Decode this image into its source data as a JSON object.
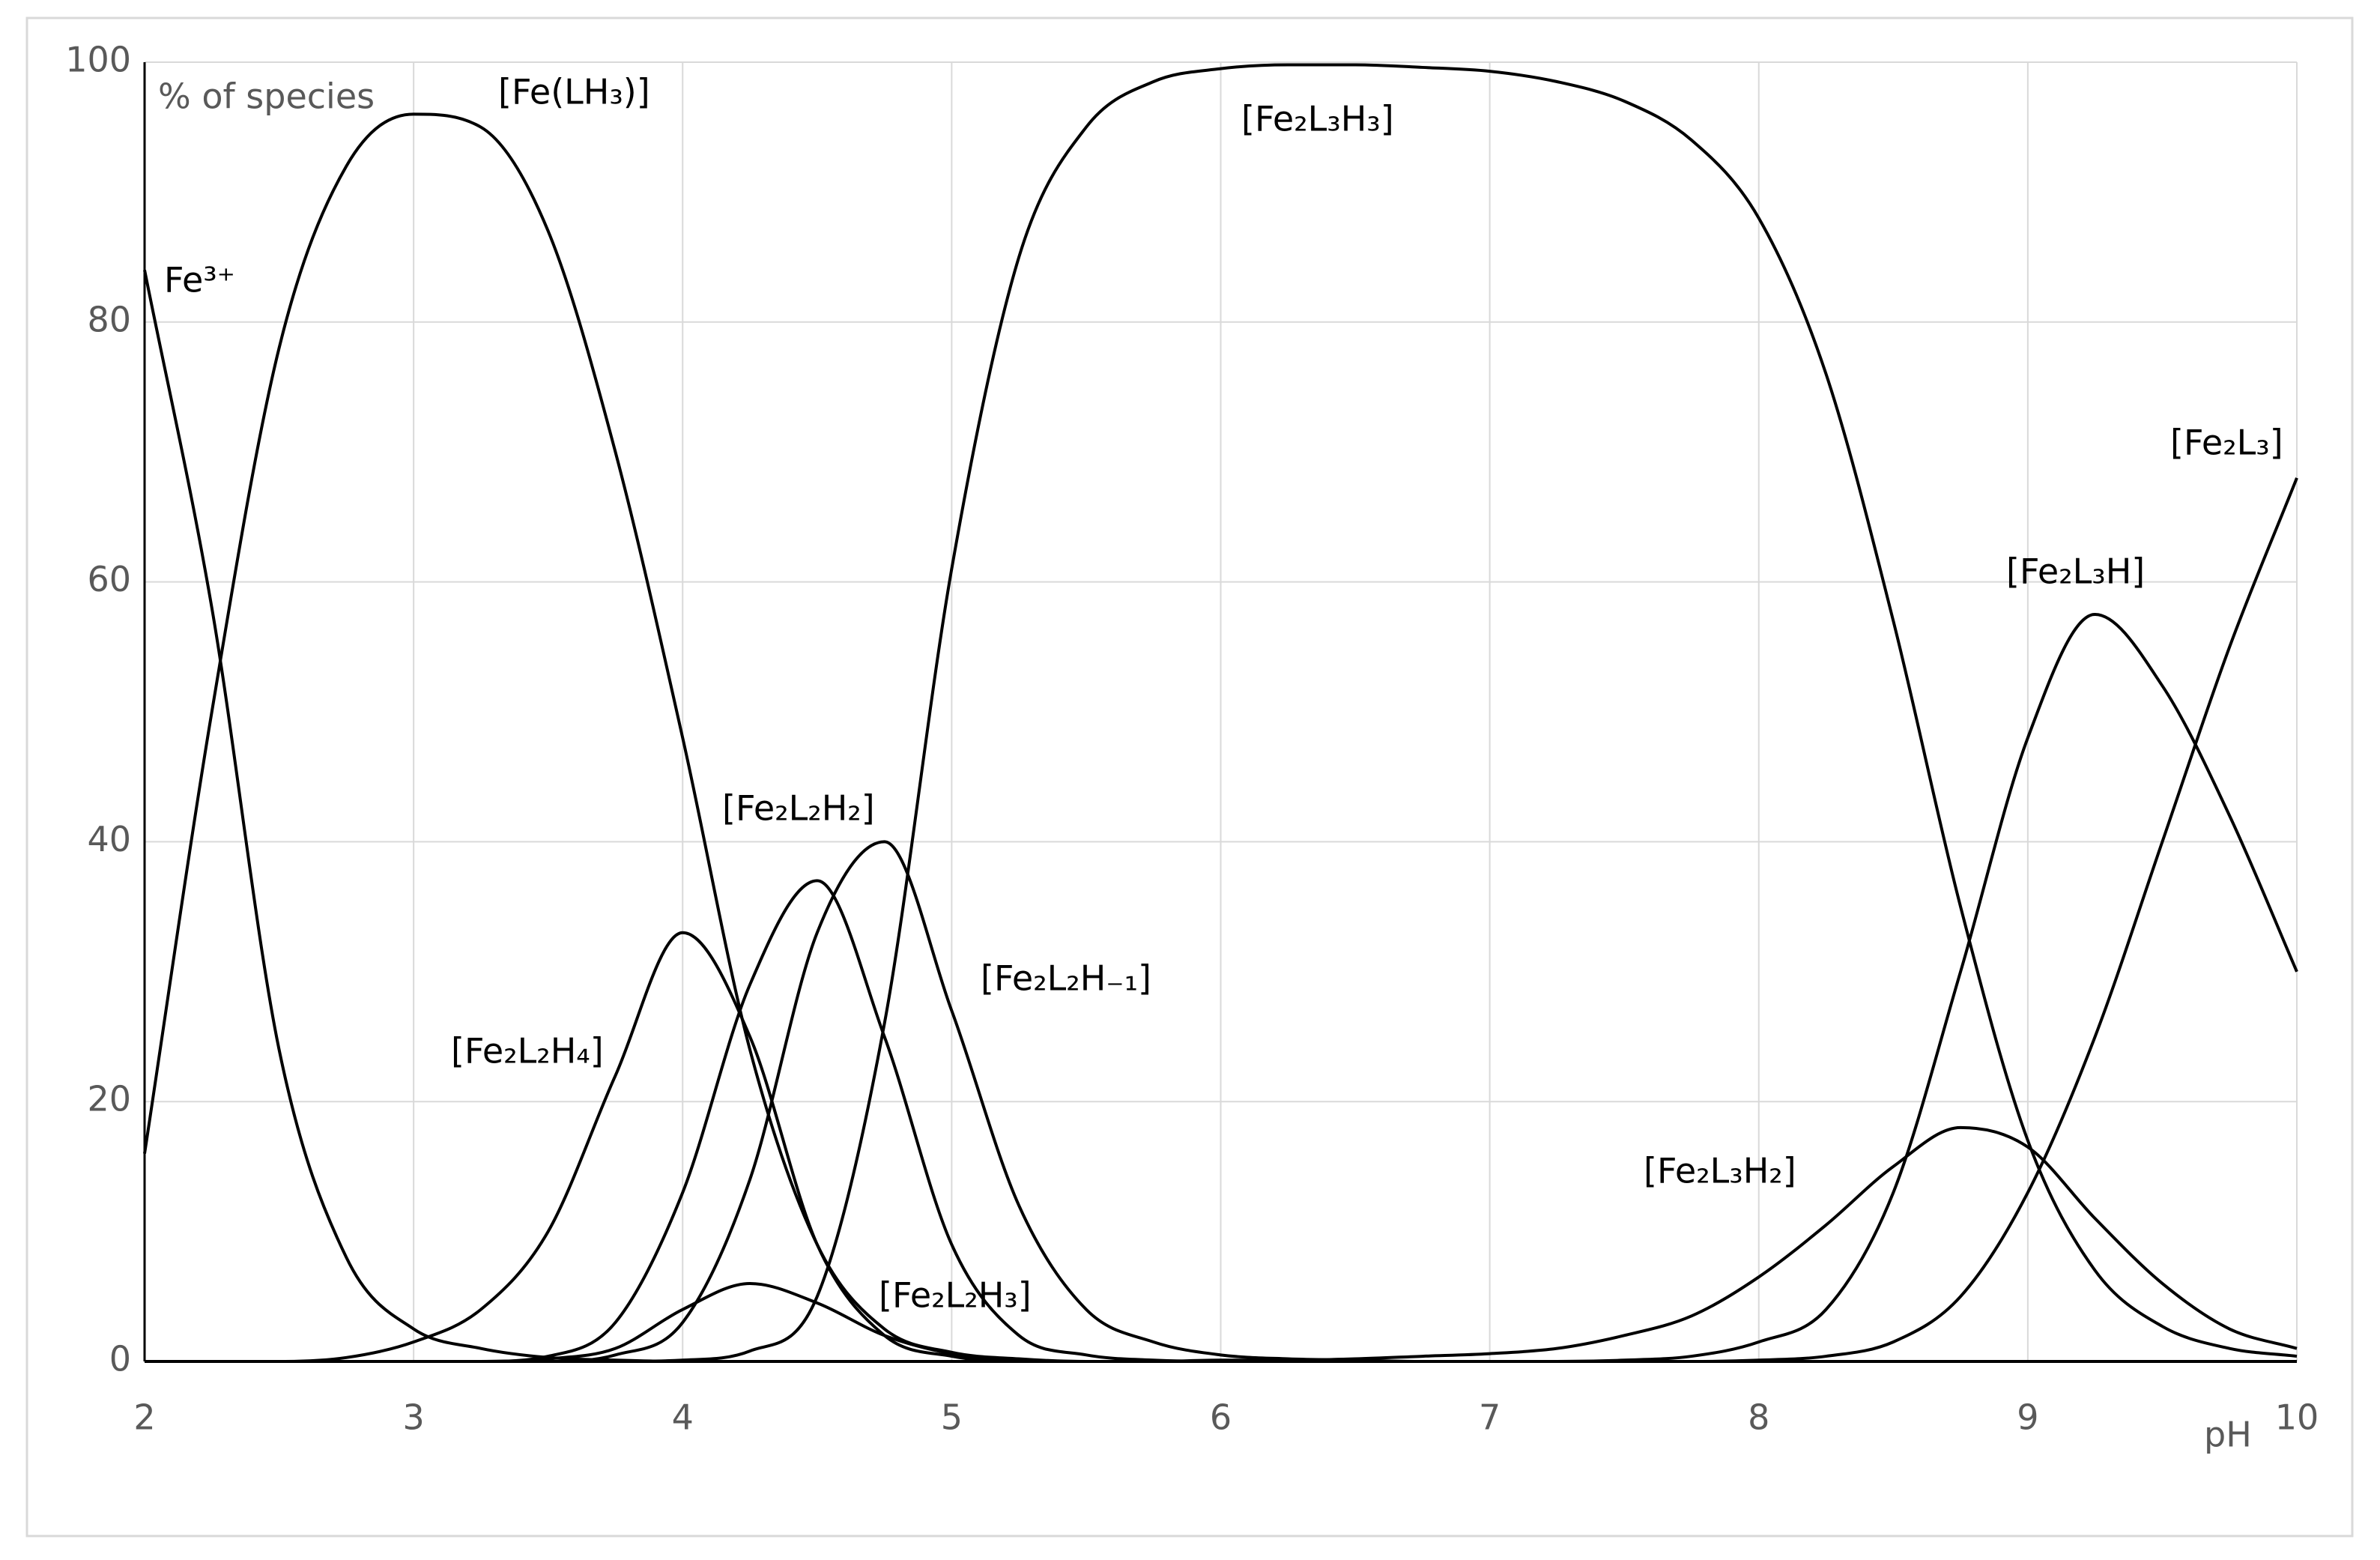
{
  "chart_data": {
    "type": "line",
    "y_label": "% of species",
    "x_label": "pH",
    "x": [
      2,
      2.25,
      2.5,
      2.75,
      3,
      3.25,
      3.5,
      3.75,
      4,
      4.25,
      4.5,
      4.75,
      5,
      5.25,
      5.5,
      5.75,
      6,
      6.25,
      6.5,
      6.75,
      7,
      7.25,
      7.5,
      7.75,
      8,
      8.25,
      8.5,
      8.75,
      9,
      9.25,
      9.5,
      9.75,
      10
    ],
    "xlim": [
      2,
      10
    ],
    "xticks": [
      2,
      3,
      4,
      5,
      6,
      7,
      8,
      9,
      10
    ],
    "ylim": [
      0,
      100
    ],
    "yticks": [
      0,
      20,
      40,
      60,
      80,
      100
    ],
    "grid": true,
    "series": [
      {
        "name": "Fe³⁺",
        "color": "#000000",
        "values": [
          84,
          58,
          24,
          8,
          2.5,
          1,
          0.3,
          0.1,
          0,
          0,
          0,
          0,
          0,
          0,
          0,
          0,
          0,
          0,
          0,
          0,
          0,
          0,
          0,
          0,
          0,
          0,
          0,
          0,
          0,
          0,
          0,
          0,
          0
        ]
      },
      {
        "name": "[Fe(LH₃)]",
        "color": "#000000",
        "values": [
          16,
          50,
          78,
          92,
          96,
          95,
          87,
          70,
          48,
          24,
          9,
          2.5,
          0.7,
          0.2,
          0,
          0,
          0,
          0,
          0,
          0,
          0,
          0,
          0,
          0,
          0,
          0,
          0,
          0,
          0,
          0,
          0,
          0,
          0
        ]
      },
      {
        "name": "[Fe₂L₂H₄]",
        "color": "#000000",
        "values": [
          0,
          0,
          0,
          0.3,
          1.5,
          4,
          10,
          22,
          33,
          25,
          9,
          2,
          0.4,
          0,
          0,
          0,
          0,
          0,
          0,
          0,
          0,
          0,
          0,
          0,
          0,
          0,
          0,
          0,
          0,
          0,
          0,
          0,
          0
        ]
      },
      {
        "name": "[Fe₂L₂H₃]",
        "color": "#000000",
        "values": [
          0,
          0,
          0,
          0,
          0,
          0,
          0.2,
          1,
          4,
          6,
          4.5,
          2,
          0.6,
          0.1,
          0,
          0,
          0,
          0,
          0,
          0,
          0,
          0,
          0,
          0,
          0,
          0,
          0,
          0,
          0,
          0,
          0,
          0,
          0
        ]
      },
      {
        "name": "[Fe₂L₂H₂]",
        "color": "#000000",
        "values": [
          0,
          0,
          0,
          0,
          0,
          0,
          0.4,
          3,
          13,
          29,
          37,
          25,
          9,
          2,
          0.5,
          0.1,
          0,
          0,
          0,
          0,
          0,
          0,
          0,
          0,
          0,
          0,
          0,
          0,
          0,
          0,
          0,
          0,
          0
        ]
      },
      {
        "name": "[Fe₂L₂H₋₁]",
        "color": "#000000",
        "values": [
          0,
          0,
          0,
          0,
          0,
          0,
          0,
          0.5,
          3,
          14,
          33,
          40,
          27,
          12,
          4,
          1.5,
          0.5,
          0.2,
          0.1,
          0,
          0,
          0,
          0,
          0,
          0,
          0,
          0,
          0,
          0,
          0,
          0,
          0,
          0
        ]
      },
      {
        "name": "[Fe₂L₃H₃]",
        "color": "#000000",
        "values": [
          0,
          0,
          0,
          0,
          0,
          0,
          0,
          0,
          0.1,
          0.8,
          5,
          26,
          61,
          85,
          95,
          98.5,
          99.5,
          99.8,
          99.8,
          99.6,
          99.3,
          98.5,
          97,
          94,
          88,
          76,
          57,
          35,
          17,
          7,
          2.7,
          1,
          0.4
        ]
      },
      {
        "name": "[Fe₂L₃H₂]",
        "color": "#000000",
        "values": [
          0,
          0,
          0,
          0,
          0,
          0,
          0,
          0,
          0,
          0,
          0,
          0,
          0,
          0,
          0,
          0,
          0.1,
          0.1,
          0.2,
          0.4,
          0.6,
          1,
          2,
          3.5,
          6.5,
          10.5,
          15,
          18,
          16.5,
          11,
          6,
          2.5,
          1
        ]
      },
      {
        "name": "[Fe₂L₃H]",
        "color": "#000000",
        "values": [
          0,
          0,
          0,
          0,
          0,
          0,
          0,
          0,
          0,
          0,
          0,
          0,
          0,
          0,
          0,
          0,
          0,
          0,
          0,
          0,
          0,
          0,
          0.1,
          0.4,
          1.5,
          4,
          13,
          30,
          48,
          57.5,
          52,
          42,
          30
        ]
      },
      {
        "name": "[Fe₂L₃]",
        "color": "#000000",
        "values": [
          0,
          0,
          0,
          0,
          0,
          0,
          0,
          0,
          0,
          0,
          0,
          0,
          0,
          0,
          0,
          0,
          0,
          0,
          0,
          0,
          0,
          0,
          0,
          0,
          0.1,
          0.4,
          1.5,
          5,
          13,
          25,
          40,
          55,
          68
        ]
      }
    ]
  }
}
